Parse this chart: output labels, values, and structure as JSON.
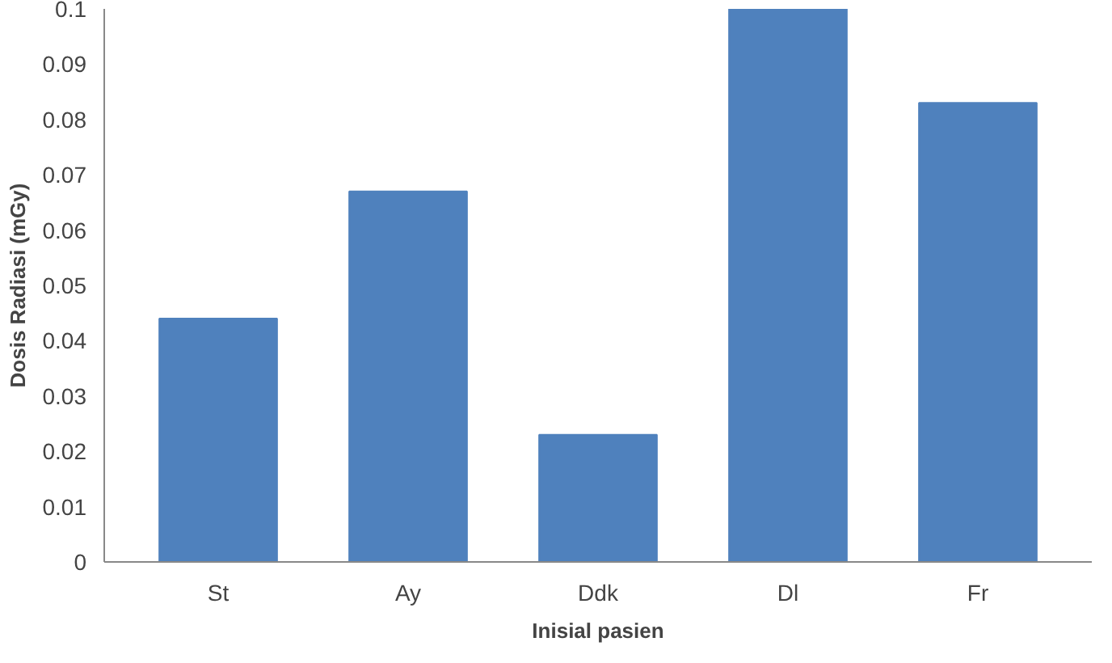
{
  "chart_data": {
    "type": "bar",
    "xlabel": "Inisial pasien",
    "ylabel": "Dosis Radiasi (mGy)",
    "categories": [
      "St",
      "Ay",
      "Ddk",
      "Dl",
      "Fr"
    ],
    "values": [
      0.044,
      0.067,
      0.023,
      0.1,
      0.083
    ],
    "color": "#4f81bd",
    "ylim": [
      0,
      0.1
    ],
    "yticks": [
      0,
      0.01,
      0.02,
      0.03,
      0.04,
      0.05,
      0.06,
      0.07,
      0.08,
      0.09,
      0.1
    ],
    "grid": false
  }
}
